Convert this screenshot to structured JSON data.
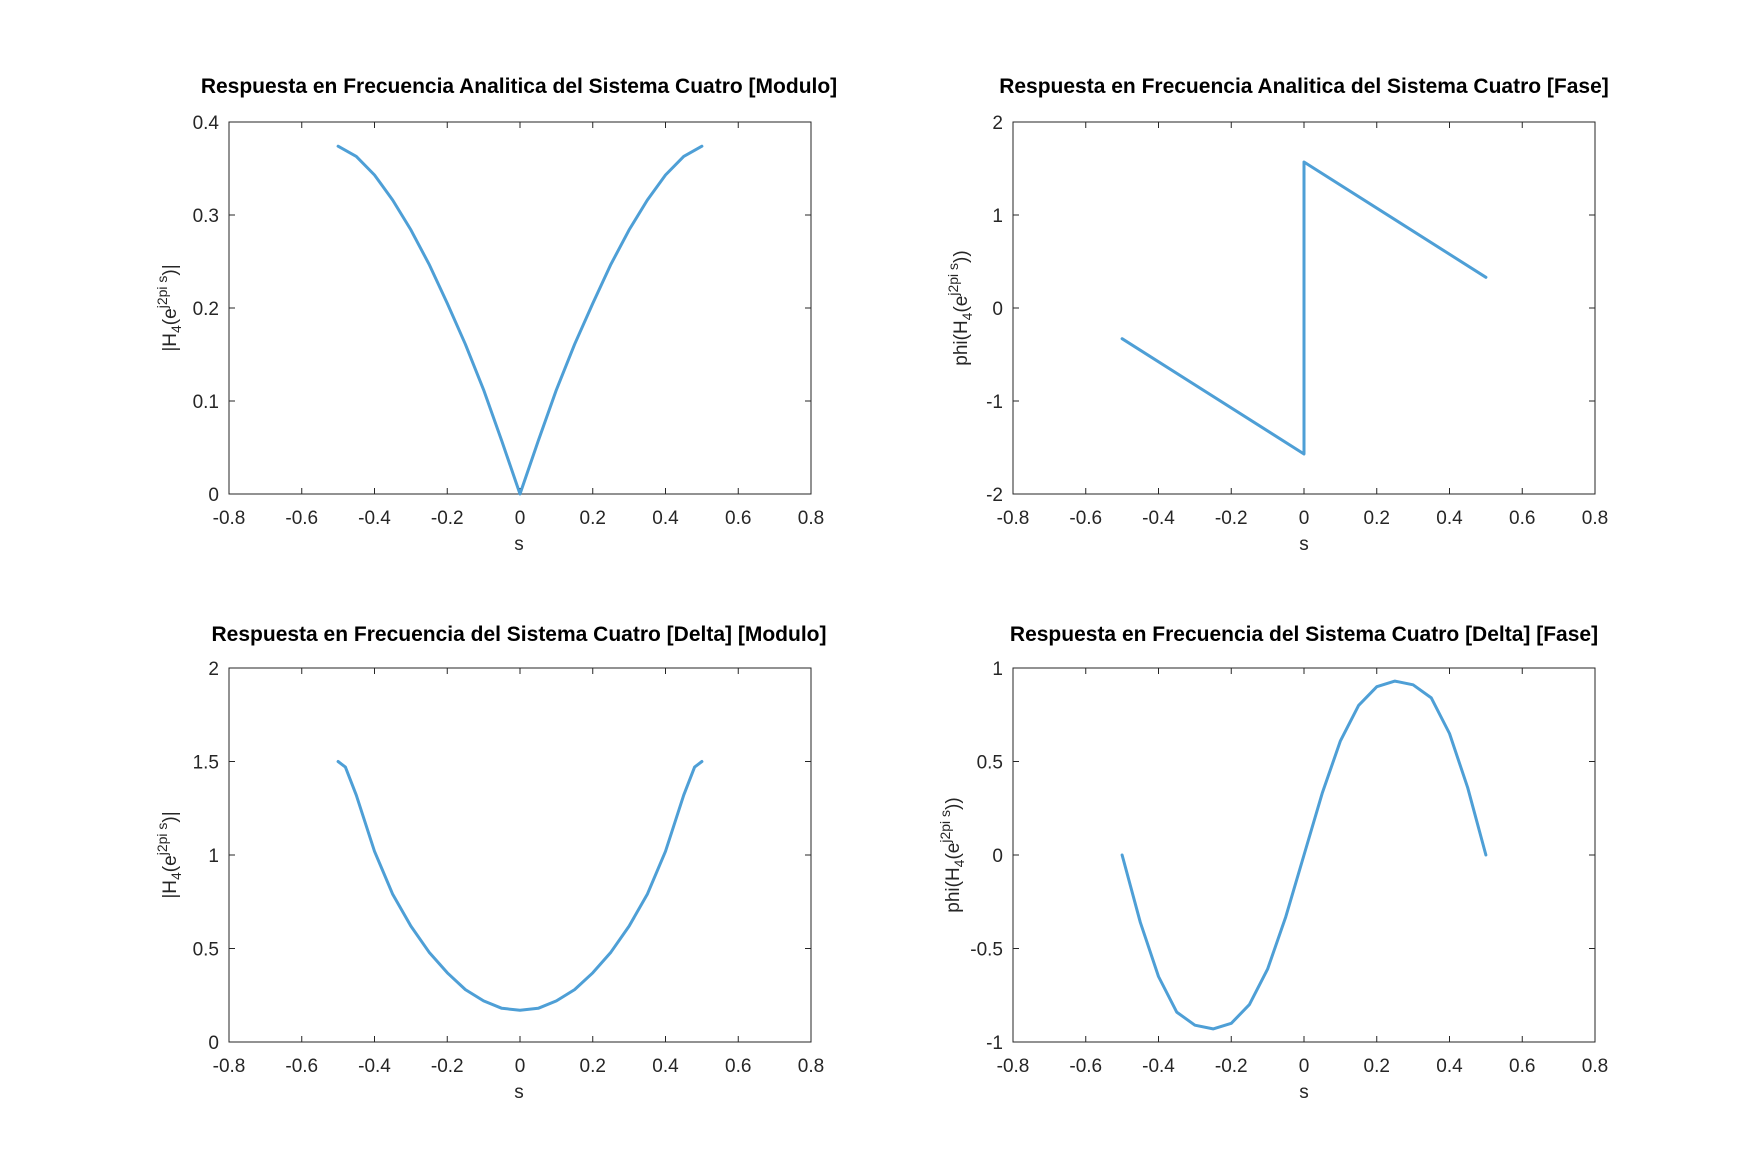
{
  "chart_data": [
    {
      "type": "line",
      "title": "Respuesta en Frecuencia Analitica del Sistema Cuatro [Modulo]",
      "xlabel": "s",
      "ylabel": {
        "pre": "|H",
        "sub": "4",
        "mid": "(e",
        "sup": "j2pi s",
        "post": ")|"
      },
      "xlim": [
        -0.8,
        0.8
      ],
      "ylim": [
        0,
        0.4
      ],
      "xticks": [
        "-0.8",
        "-0.6",
        "-0.4",
        "-0.2",
        "0",
        "0.2",
        "0.4",
        "0.6",
        "0.8"
      ],
      "yticks": [
        "0",
        "0.1",
        "0.2",
        "0.3",
        "0.4"
      ],
      "color": "#4e9fd6",
      "series": [
        {
          "x": [
            -0.5,
            -0.45,
            -0.4,
            -0.35,
            -0.3,
            -0.25,
            -0.2,
            -0.15,
            -0.1,
            -0.05,
            0,
            0.05,
            0.1,
            0.15,
            0.2,
            0.25,
            0.3,
            0.35,
            0.4,
            0.45,
            0.5
          ],
          "y": [
            0.374,
            0.363,
            0.343,
            0.316,
            0.284,
            0.247,
            0.205,
            0.161,
            0.112,
            0.057,
            0.0,
            0.057,
            0.112,
            0.161,
            0.205,
            0.247,
            0.284,
            0.316,
            0.343,
            0.363,
            0.374
          ]
        }
      ]
    },
    {
      "type": "line",
      "title": "Respuesta en Frecuencia Analitica del Sistema Cuatro [Fase]",
      "xlabel": "s",
      "ylabel": {
        "pre": "phi(H",
        "sub": "4",
        "mid": "(e",
        "sup": "j2pi s",
        "post": "))"
      },
      "xlim": [
        -0.8,
        0.8
      ],
      "ylim": [
        -2,
        2
      ],
      "xticks": [
        "-0.8",
        "-0.6",
        "-0.4",
        "-0.2",
        "0",
        "0.2",
        "0.4",
        "0.6",
        "0.8"
      ],
      "yticks": [
        "-2",
        "-1",
        "0",
        "1",
        "2"
      ],
      "color": "#4e9fd6",
      "series": [
        {
          "x": [
            -0.5,
            0,
            0,
            0.5
          ],
          "y": [
            -0.33,
            -1.57,
            1.57,
            0.33
          ]
        }
      ]
    },
    {
      "type": "line",
      "title": "Respuesta en Frecuencia del Sistema Cuatro [Delta] [Modulo]",
      "xlabel": "s",
      "ylabel": {
        "pre": "|H",
        "sub": "4",
        "mid": "(e",
        "sup": "j2pi s",
        "post": ")|"
      },
      "xlim": [
        -0.8,
        0.8
      ],
      "ylim": [
        0,
        2
      ],
      "xticks": [
        "-0.8",
        "-0.6",
        "-0.4",
        "-0.2",
        "0",
        "0.2",
        "0.4",
        "0.6",
        "0.8"
      ],
      "yticks": [
        "0",
        "0.5",
        "1",
        "1.5",
        "2"
      ],
      "color": "#4e9fd6",
      "series": [
        {
          "x": [
            -0.5,
            -0.48,
            -0.45,
            -0.42,
            -0.4,
            -0.35,
            -0.3,
            -0.25,
            -0.2,
            -0.15,
            -0.1,
            -0.05,
            0,
            0.05,
            0.1,
            0.15,
            0.2,
            0.25,
            0.3,
            0.35,
            0.4,
            0.42,
            0.45,
            0.48,
            0.5
          ],
          "y": [
            1.5,
            1.47,
            1.32,
            1.14,
            1.02,
            0.79,
            0.62,
            0.48,
            0.37,
            0.28,
            0.22,
            0.18,
            0.17,
            0.18,
            0.22,
            0.28,
            0.37,
            0.48,
            0.62,
            0.79,
            1.02,
            1.14,
            1.32,
            1.47,
            1.5
          ]
        }
      ]
    },
    {
      "type": "line",
      "title": "Respuesta en Frecuencia del Sistema Cuatro [Delta] [Fase]",
      "xlabel": "s",
      "ylabel": {
        "pre": "phi(H",
        "sub": "4",
        "mid": "(e",
        "sup": "j2pi s",
        "post": "))"
      },
      "xlim": [
        -0.8,
        0.8
      ],
      "ylim": [
        -1,
        1
      ],
      "xticks": [
        "-0.8",
        "-0.6",
        "-0.4",
        "-0.2",
        "0",
        "0.2",
        "0.4",
        "0.6",
        "0.8"
      ],
      "yticks": [
        "-1",
        "-0.5",
        "0",
        "0.5",
        "1"
      ],
      "color": "#4e9fd6",
      "series": [
        {
          "x": [
            -0.5,
            -0.45,
            -0.4,
            -0.35,
            -0.3,
            -0.25,
            -0.2,
            -0.15,
            -0.1,
            -0.05,
            0,
            0.05,
            0.1,
            0.15,
            0.2,
            0.25,
            0.3,
            0.35,
            0.4,
            0.45,
            0.5
          ],
          "y": [
            0.0,
            -0.36,
            -0.65,
            -0.84,
            -0.91,
            -0.93,
            -0.9,
            -0.8,
            -0.61,
            -0.33,
            0.0,
            0.33,
            0.61,
            0.8,
            0.9,
            0.93,
            0.91,
            0.84,
            0.65,
            0.36,
            0.0
          ]
        }
      ]
    }
  ]
}
